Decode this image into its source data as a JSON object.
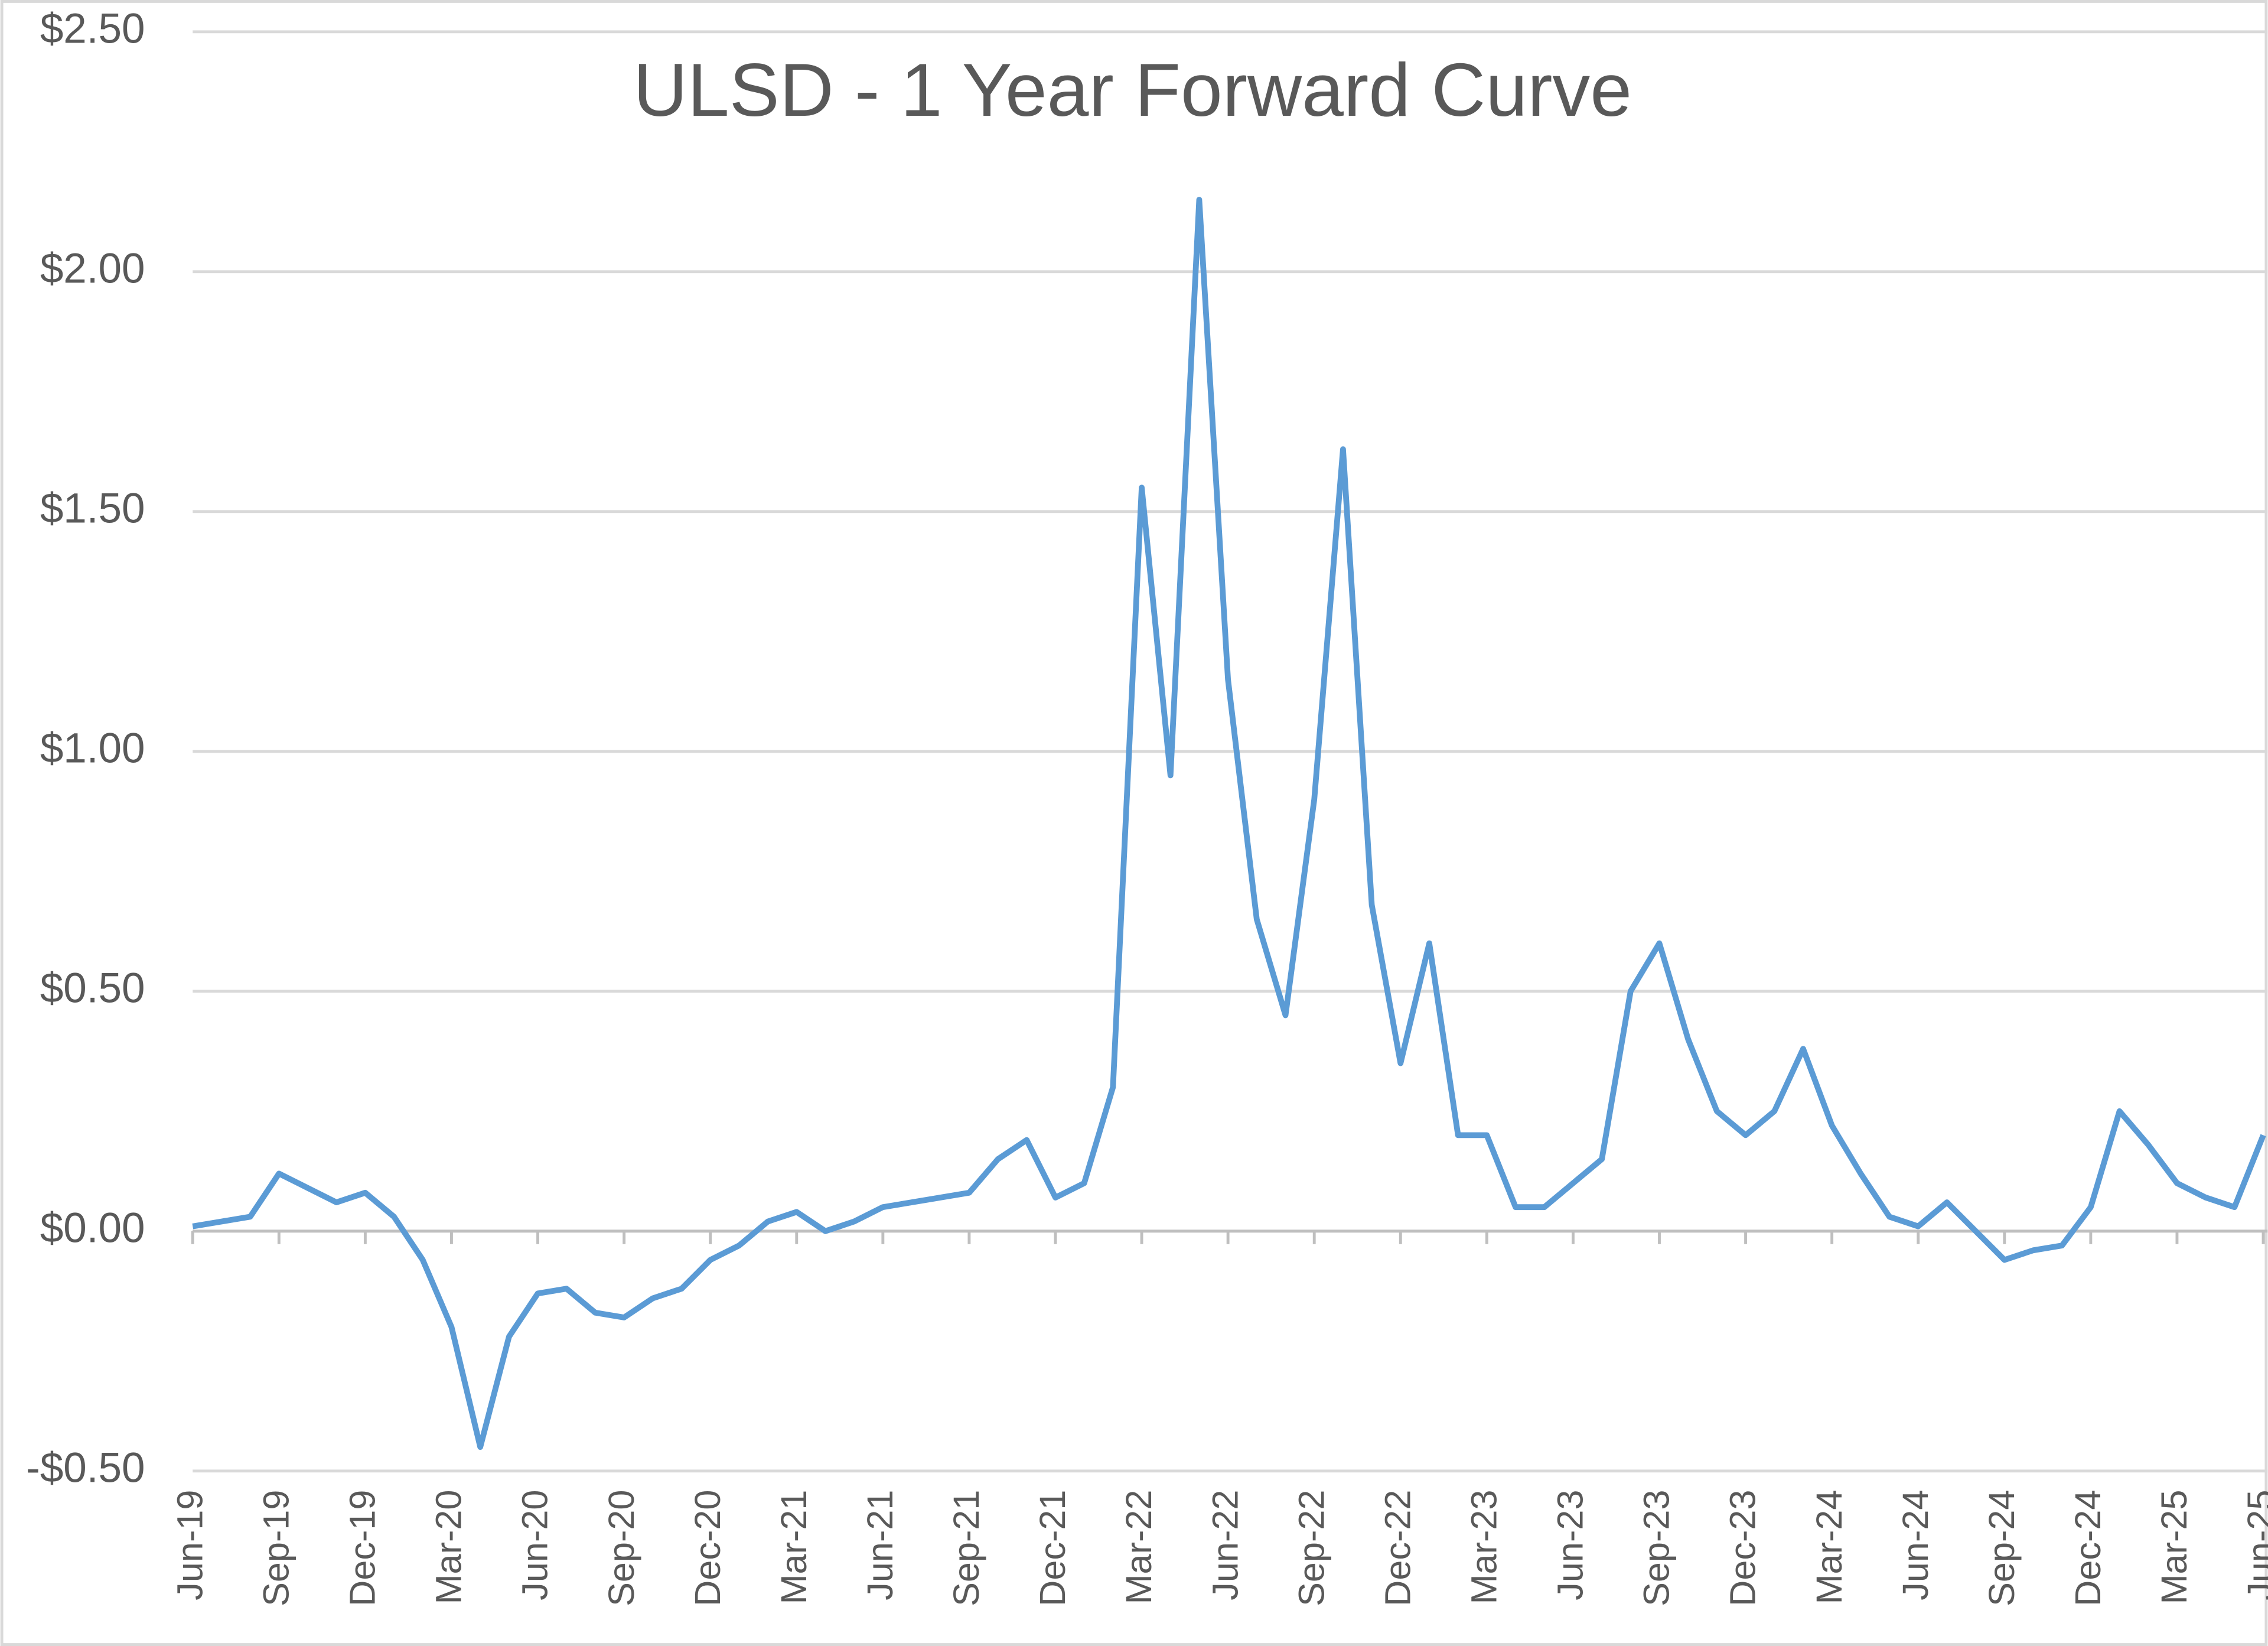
{
  "chart_data": {
    "type": "line",
    "title": "ULSD - 1 Year Forward Curve",
    "x": [
      "Jun-19",
      null,
      null,
      "Sep-19",
      null,
      null,
      "Dec-19",
      null,
      null,
      "Mar-20",
      null,
      null,
      "Jun-20",
      null,
      null,
      "Sep-20",
      null,
      null,
      "Dec-20",
      null,
      null,
      "Mar-21",
      null,
      null,
      "Jun-21",
      null,
      null,
      "Sep-21",
      null,
      null,
      "Dec-21",
      null,
      null,
      "Mar-22",
      null,
      null,
      "Jun-22",
      null,
      null,
      "Sep-22",
      null,
      null,
      "Dec-22",
      null,
      null,
      "Mar-23",
      null,
      null,
      "Jun-23",
      null,
      null,
      "Sep-23",
      null,
      null,
      "Dec-23",
      null,
      null,
      "Mar-24",
      null,
      null,
      "Jun-24",
      null,
      null,
      "Sep-24",
      null,
      null,
      "Dec-24",
      null,
      null,
      "Mar-25",
      null,
      null,
      "Jun-25"
    ],
    "series": [
      {
        "name": "ULSD",
        "color": "#5b9bd5",
        "values": [
          0.01,
          0.02,
          0.03,
          0.12,
          0.09,
          0.06,
          0.08,
          0.03,
          -0.06,
          -0.2,
          -0.45,
          -0.22,
          -0.13,
          -0.12,
          -0.17,
          -0.18,
          -0.14,
          -0.12,
          -0.06,
          -0.03,
          0.02,
          0.04,
          0.0,
          0.02,
          0.05,
          0.06,
          0.07,
          0.08,
          0.15,
          0.19,
          0.07,
          0.1,
          0.3,
          1.55,
          0.95,
          2.15,
          1.15,
          0.65,
          0.45,
          0.9,
          1.63,
          0.68,
          0.35,
          0.6,
          0.2,
          0.2,
          0.05,
          0.05,
          0.1,
          0.15,
          0.5,
          0.6,
          0.4,
          0.25,
          0.2,
          0.25,
          0.38,
          0.22,
          0.12,
          0.03,
          0.01,
          0.06,
          0.0,
          -0.06,
          -0.04,
          -0.03,
          0.05,
          0.25,
          0.18,
          0.1,
          0.07,
          0.05,
          0.2
        ]
      }
    ],
    "ylim": [
      -0.5,
      2.5
    ],
    "yticks": [
      {
        "value": -0.5,
        "label": "-$0.50"
      },
      {
        "value": 0,
        "label": "$0.00"
      },
      {
        "value": 0.5,
        "label": "$0.50"
      },
      {
        "value": 1,
        "label": "$1.00"
      },
      {
        "value": 1.5,
        "label": "$1.50"
      },
      {
        "value": 2,
        "label": "$2.00"
      },
      {
        "value": 2.5,
        "label": "$2.50"
      }
    ],
    "grid": true
  }
}
